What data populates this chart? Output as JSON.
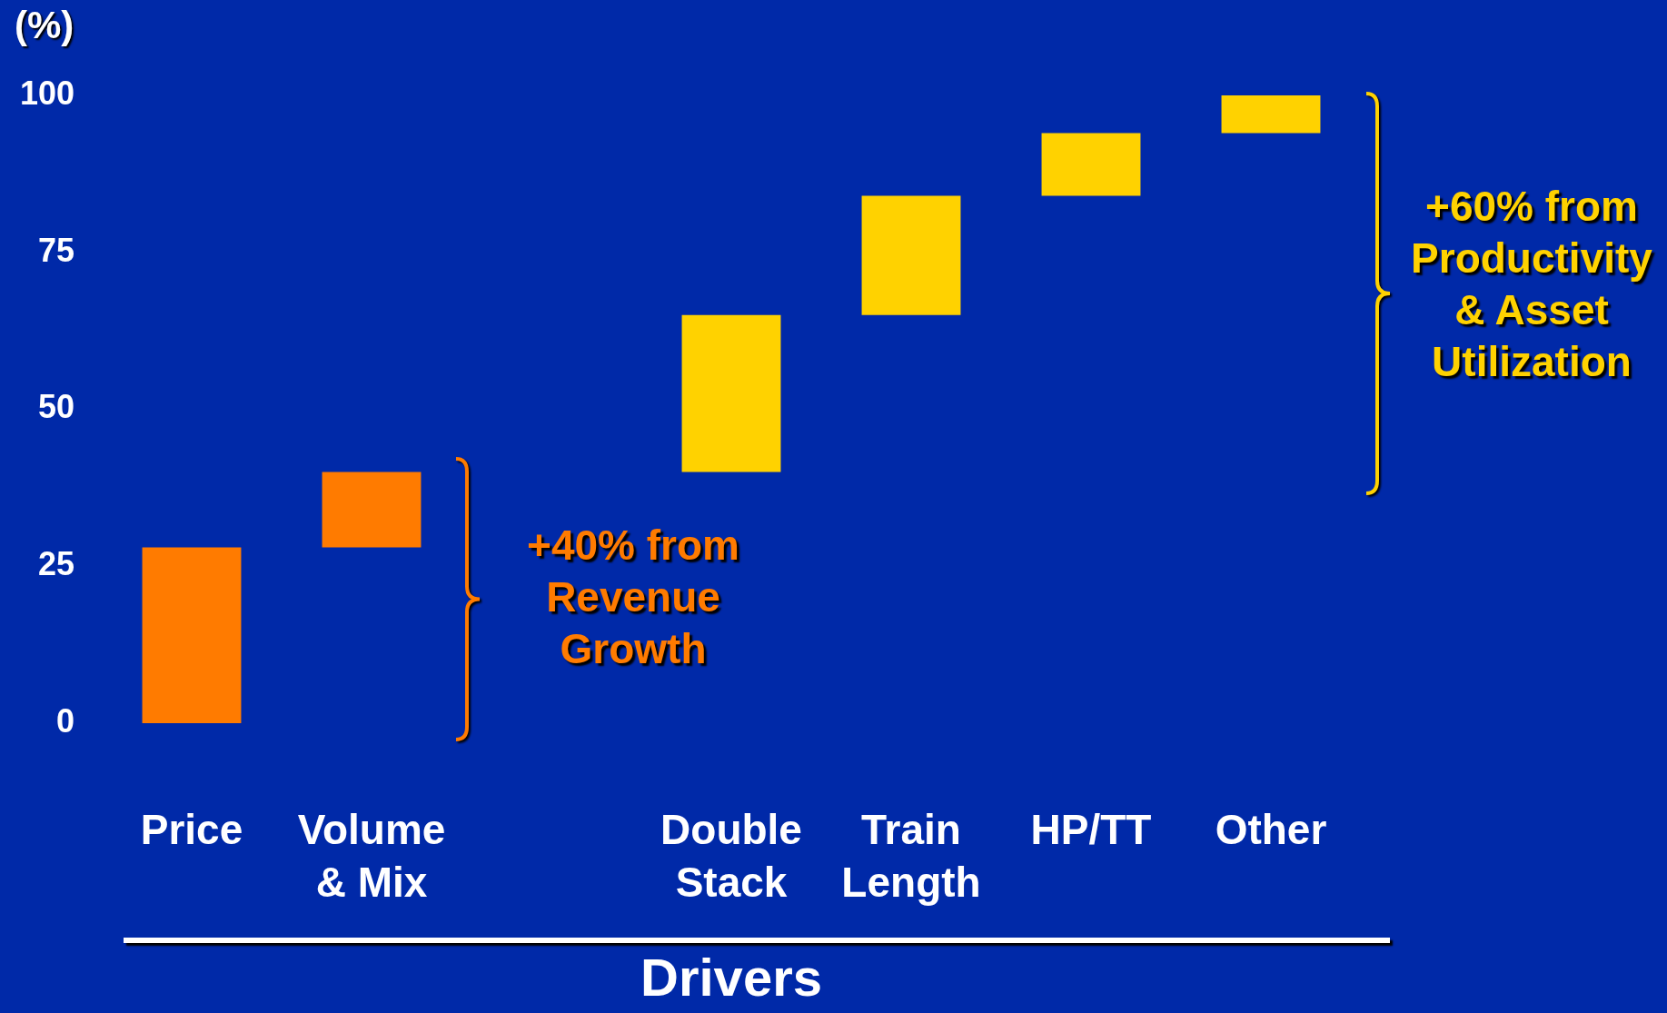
{
  "chart_data": {
    "type": "bar",
    "ylabel": "(%)",
    "xlabel": "Drivers",
    "categories": [
      "Price",
      "Volume & Mix",
      null,
      "Double Stack",
      "Train Length",
      "HP/TT",
      "Other"
    ],
    "values": [
      28,
      12,
      null,
      25,
      19,
      10,
      6
    ],
    "base": [
      0,
      28,
      null,
      40,
      65,
      84,
      94
    ],
    "colors": [
      "#ff7b00",
      "#ff7b00",
      "#ff7b00",
      "#ffd200",
      "#ffd200",
      "#ffd200",
      "#ffd200"
    ],
    "ylim": [
      0,
      100
    ],
    "yticks": [
      0,
      25,
      50,
      75,
      100
    ],
    "grid": false,
    "legend": false,
    "annotations": [
      "+40% from Revenue Growth",
      "+60% from Productivity & Asset Utilization"
    ]
  }
}
